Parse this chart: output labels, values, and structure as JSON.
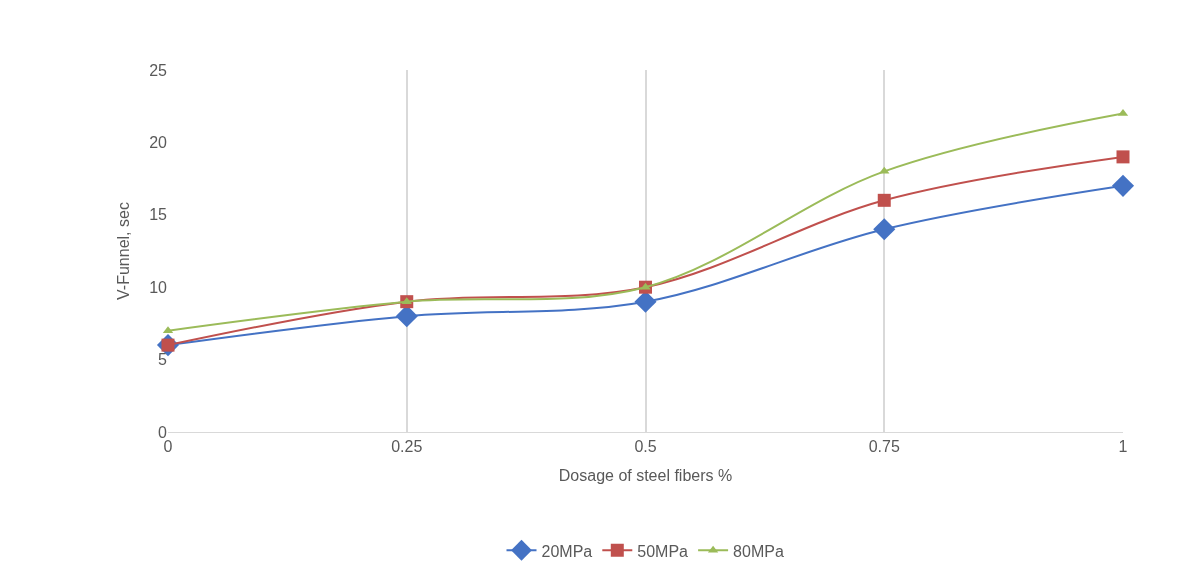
{
  "chart_data": {
    "type": "line",
    "xlabel": "Dosage of steel fibers %",
    "ylabel": "V-Funnel, sec",
    "x": [
      0,
      0.25,
      0.5,
      0.75,
      1
    ],
    "series": [
      {
        "name": "20MPa",
        "color": "#4472c4",
        "marker": "diamond",
        "values": [
          6,
          8,
          9,
          14,
          17
        ]
      },
      {
        "name": "50MPa",
        "color": "#c0504d",
        "marker": "square",
        "values": [
          6,
          9,
          10,
          16,
          19
        ]
      },
      {
        "name": "80MPa",
        "color": "#9bbb59",
        "marker": "triangle",
        "values": [
          7,
          9,
          10,
          18,
          22
        ]
      }
    ],
    "xlim": [
      0,
      1
    ],
    "xticks": [
      0,
      0.25,
      0.5,
      0.75,
      1
    ],
    "ylim": [
      0,
      25
    ],
    "yticks": [
      0,
      5,
      10,
      15,
      20,
      25
    ],
    "grid": "x",
    "legend": "bottom",
    "line_style": "solid"
  }
}
